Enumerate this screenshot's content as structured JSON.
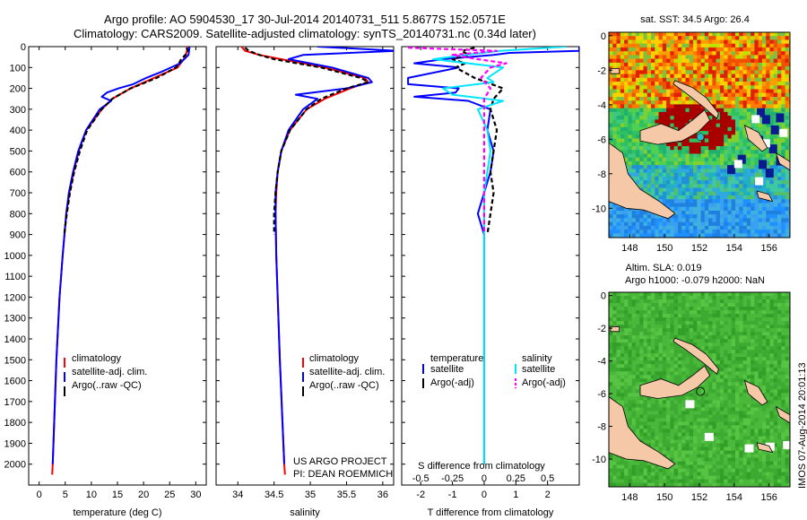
{
  "header": {
    "line1": "Argo profile: AO 5904530_17 30-Jul-2014 20140731_511 5.8677S 152.0571E",
    "line2": "Climatology: CARS2009. Satellite-adjusted climatology: synTS_20140731.nc (0.34d later)"
  },
  "colors": {
    "climatology": "#ff0000",
    "satellite": "#0000ff",
    "argo": "#000000",
    "salinity_satellite": "#00e5ff",
    "salinity_argo": "#ff00ff"
  },
  "legend_ts": {
    "climatology": "climatology",
    "satellite": "satellite-adj. clim.",
    "argo": "Argo(..raw -QC)"
  },
  "legend_diff": {
    "temperature_head": "temperature",
    "salinity_head": "salinity",
    "t_satellite": "satellite",
    "t_argo": "Argo(-adj)",
    "s_satellite": "satellite",
    "s_argo": "Argo(-adj)"
  },
  "credits": {
    "project": "US ARGO PROJECT",
    "pi": "PI: DEAN ROEMMICH"
  },
  "watermark": "IMOS 07-Aug-2014 20:01:13",
  "map_sst": {
    "title": "sat. SST: 34.5  Argo: 26.4",
    "lon_ticks": [
      "148",
      "150",
      "152",
      "154",
      "156"
    ],
    "lat_ticks": [
      "0",
      "-2",
      "-4",
      "-6",
      "-8",
      "-10"
    ]
  },
  "map_sla": {
    "title1": "Altim. SLA: 0.019",
    "title2": "Argo h1000: -0.079 h2000: NaN",
    "lon_ticks": [
      "148",
      "150",
      "152",
      "154",
      "156"
    ],
    "lat_ticks": [
      "0",
      "-2",
      "-4",
      "-6",
      "-8",
      "-10"
    ]
  },
  "chart_data": [
    {
      "type": "line",
      "title": "",
      "xlabel": "temperature (deg C)",
      "ylabel": "",
      "xlim": [
        -2,
        32
      ],
      "ylim": [
        2100,
        0
      ],
      "xticks": [
        0,
        5,
        10,
        15,
        20,
        25,
        30
      ],
      "xtick_labels": [
        "0",
        "5",
        "10",
        "15",
        "20",
        "25",
        "30"
      ],
      "yticks": [
        0,
        100,
        200,
        300,
        400,
        500,
        600,
        700,
        800,
        900,
        1000,
        1100,
        1200,
        1300,
        1400,
        1500,
        1600,
        1700,
        1800,
        1900,
        2000
      ],
      "ytick_labels": [
        "0",
        "100",
        "200",
        "300",
        "400",
        "500",
        "600",
        "700",
        "800",
        "900",
        "1000",
        "1100",
        "1200",
        "1300",
        "1400",
        "1500",
        "1600",
        "1700",
        "1800",
        "1900",
        "2000"
      ],
      "series": [
        {
          "name": "climatology",
          "depth": [
            0,
            50,
            100,
            150,
            200,
            250,
            300,
            400,
            500,
            600,
            700,
            800,
            1000,
            1200,
            1500,
            2000,
            2050
          ],
          "values": [
            28.5,
            28.0,
            26.5,
            22.0,
            17.5,
            14.0,
            12.0,
            9.0,
            7.6,
            6.6,
            5.8,
            5.2,
            4.5,
            3.9,
            3.3,
            2.6,
            2.5
          ]
        },
        {
          "name": "satellite-adj. clim.",
          "depth": [
            0,
            40,
            80,
            120,
            150,
            180,
            200,
            220,
            240,
            260,
            300,
            400,
            500,
            600,
            700,
            800,
            1000,
            1200,
            1500,
            2000
          ],
          "values": [
            28.8,
            28.6,
            27.0,
            23.5,
            20.5,
            18.0,
            15.2,
            13.0,
            12.0,
            13.8,
            11.6,
            9.0,
            7.5,
            6.5,
            5.7,
            5.2,
            4.5,
            3.9,
            3.3,
            2.6
          ]
        },
        {
          "name": "Argo(..raw -QC)",
          "depth": [
            5,
            20,
            40,
            60,
            80,
            100,
            150,
            200,
            250,
            300,
            400,
            500,
            600,
            700,
            800,
            900
          ],
          "values": [
            28.2,
            28.5,
            28.0,
            27.2,
            26.8,
            26.2,
            22.5,
            17.5,
            14.0,
            12.0,
            9.2,
            7.8,
            6.7,
            5.9,
            5.3,
            4.8
          ]
        }
      ]
    },
    {
      "type": "line",
      "title": "",
      "xlabel": "salinity",
      "ylabel": "",
      "xlim": [
        33.7,
        36.15
      ],
      "ylim": [
        2100,
        0
      ],
      "xticks": [
        34,
        34.5,
        35,
        35.5,
        36
      ],
      "xtick_labels": [
        "34",
        "34.5",
        "35",
        "35.5",
        "36"
      ],
      "series": [
        {
          "name": "climatology",
          "depth": [
            0,
            20,
            40,
            60,
            100,
            150,
            170,
            200,
            250,
            300,
            400,
            500,
            600,
            700,
            800,
            1000,
            1500,
            2000,
            2050
          ],
          "values": [
            34.05,
            34.1,
            34.3,
            34.6,
            35.2,
            35.75,
            35.8,
            35.55,
            35.2,
            34.95,
            34.72,
            34.6,
            34.55,
            34.53,
            34.52,
            34.53,
            34.58,
            34.64,
            34.65
          ]
        },
        {
          "name": "satellite-adj. clim.",
          "depth": [
            0,
            20,
            40,
            60,
            100,
            150,
            170,
            200,
            230,
            250,
            300,
            400,
            500,
            600,
            700,
            800,
            1000,
            1500,
            2000
          ],
          "values": [
            35.1,
            36.2,
            34.9,
            34.7,
            35.3,
            35.8,
            35.85,
            35.5,
            34.8,
            35.1,
            34.9,
            34.7,
            34.6,
            34.55,
            34.52,
            34.52,
            34.53,
            34.58,
            34.64
          ]
        },
        {
          "name": "Argo(..raw -QC)",
          "depth": [
            5,
            20,
            40,
            60,
            100,
            150,
            170,
            200,
            250,
            300,
            400,
            500,
            600,
            700,
            800,
            900
          ],
          "values": [
            34.1,
            34.15,
            34.3,
            34.5,
            35.15,
            35.7,
            35.8,
            35.5,
            35.15,
            34.95,
            34.72,
            34.6,
            34.55,
            34.52,
            34.5,
            34.5
          ]
        }
      ]
    },
    {
      "type": "line",
      "title": "",
      "xlabel": "T difference from climatology",
      "xlabel_top": "S difference from climatology",
      "xlim": [
        -2.6,
        3.0
      ],
      "ylim": [
        2100,
        0
      ],
      "xticks": [
        -2,
        -1,
        0,
        1,
        2
      ],
      "xtick_labels": [
        "-2",
        "-1",
        "0",
        "1",
        "2"
      ],
      "sticks_pos": [
        -2,
        -1,
        0,
        1,
        2
      ],
      "sticks_labels": [
        "-0.5",
        "-0.25",
        "0",
        "0.25",
        "0.5"
      ],
      "series": [
        {
          "name": "T satellite",
          "depth": [
            0,
            20,
            30,
            40,
            60,
            80,
            100,
            150,
            180,
            200,
            220,
            240,
            260,
            300,
            400,
            500,
            600,
            700,
            800,
            900,
            1000,
            1200,
            1500,
            2000
          ],
          "values": [
            3.0,
            3.0,
            0.8,
            0.3,
            -1.3,
            -2.2,
            -0.8,
            -2.4,
            -2.4,
            -0.8,
            -0.9,
            -2.2,
            -0.5,
            0.2,
            0.1,
            0.3,
            0.2,
            0.0,
            -0.2,
            0.0,
            0.0,
            0.0,
            0.0,
            0.0
          ]
        },
        {
          "name": "T Argo(-adj)",
          "depth": [
            5,
            20,
            40,
            60,
            80,
            100,
            150,
            200,
            250,
            300,
            400,
            500,
            600,
            700,
            800,
            900
          ],
          "values": [
            -0.3,
            -0.7,
            -0.5,
            -1.0,
            -0.6,
            -0.9,
            -0.3,
            0.6,
            0.3,
            0.2,
            0.4,
            0.3,
            0.2,
            0.3,
            0.2,
            0.1
          ]
        },
        {
          "name": "S satellite",
          "depth": [
            0,
            20,
            40,
            60,
            100,
            150,
            170,
            200,
            230,
            260,
            300,
            400,
            500,
            600,
            700,
            800,
            1000,
            1500,
            2000
          ],
          "values": [
            2.6,
            0.5,
            -0.6,
            -1.6,
            0.6,
            0.1,
            0.3,
            -1.3,
            -1.0,
            0.6,
            -0.2,
            0.1,
            0.2,
            0.1,
            0.0,
            0.0,
            0.0,
            0.0,
            0.0
          ]
        },
        {
          "name": "S Argo(-adj)",
          "depth": [
            5,
            20,
            40,
            60,
            80,
            100,
            150,
            200,
            250,
            300,
            400,
            500,
            600,
            700,
            800,
            900
          ],
          "values": [
            -2.4,
            0.4,
            -1.0,
            -0.2,
            0.7,
            0.2,
            -0.1,
            0.2,
            0.0,
            0.0,
            0.0,
            0.0,
            0.0,
            0.0,
            0.0,
            0.0
          ]
        }
      ]
    }
  ]
}
